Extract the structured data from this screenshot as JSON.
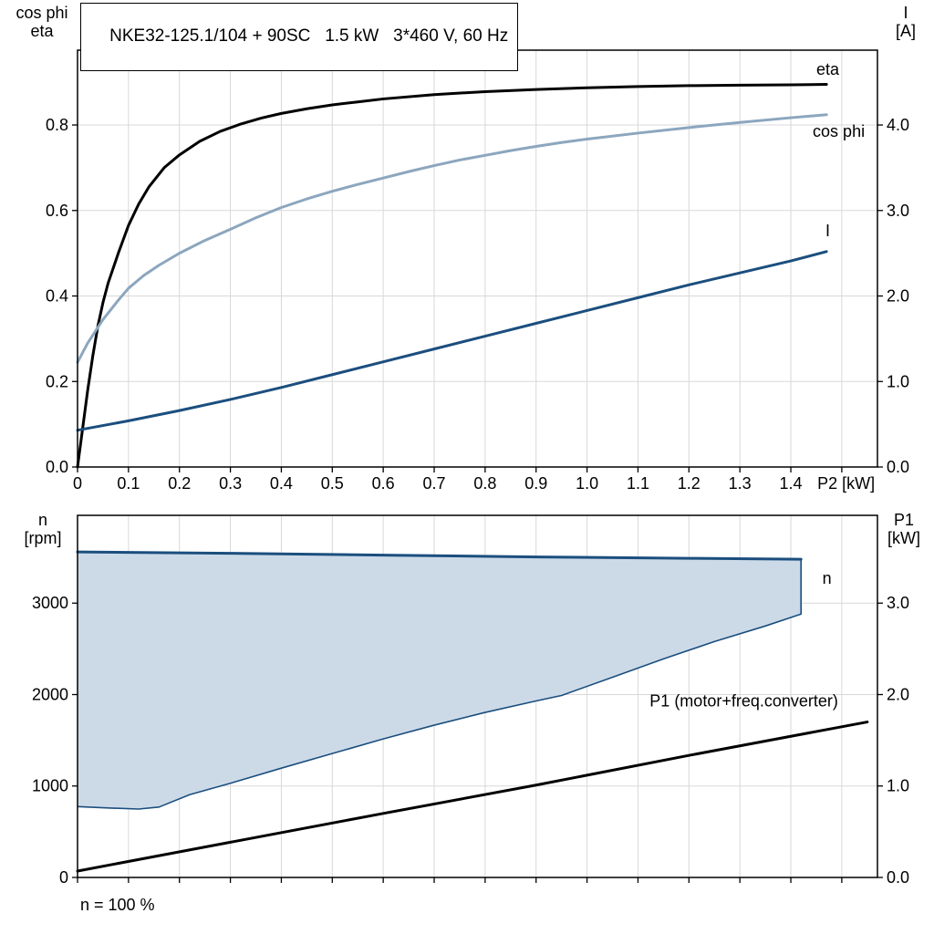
{
  "colors": {
    "grid": "#D8D8D8",
    "frame": "#000000",
    "eta": "#000000",
    "cos_phi": "#8CA6BE",
    "current": "#1B4E7E",
    "speed": "#1B4E7E",
    "band_fill": "#CCDAE8",
    "p1": "#000000"
  },
  "chart_data": [
    {
      "id": "chart-top",
      "type": "line",
      "title": "NKE32-125.1/104 + 90SC   1.5 kW   3*460 V, 60 Hz",
      "x_axis": {
        "min": 0,
        "max": 1.57,
        "tick_step": 0.1,
        "grid_step": 0.1,
        "grid_max": 1.5,
        "tick_labels": [
          "0",
          "0.1",
          "0.2",
          "0.3",
          "0.4",
          "0.5",
          "0.6",
          "0.7",
          "0.8",
          "0.9",
          "1.0",
          "1.1",
          "1.2",
          "1.3",
          "1.4"
        ],
        "end_label": "P2 [kW]",
        "end_label_x": 1.452
      },
      "y_left": {
        "title_lines": [
          "cos phi",
          "eta"
        ],
        "min": 0,
        "max": 0.975,
        "tick_values": [
          0,
          0.2,
          0.4,
          0.6,
          0.8
        ],
        "tick_labels": [
          "0.0",
          "0.2",
          "0.4",
          "0.6",
          "0.8"
        ]
      },
      "y_right": {
        "title_lines": [
          "I",
          "[A]"
        ],
        "min": 0,
        "max": 4.875,
        "tick_values": [
          0,
          1,
          2,
          3,
          4
        ],
        "tick_labels": [
          "0.0",
          "1.0",
          "2.0",
          "3.0",
          "4.0"
        ]
      },
      "series": [
        {
          "name": "eta",
          "axis": "left",
          "color": "#000000",
          "width": 3,
          "points": [
            [
              0,
              0
            ],
            [
              0.01,
              0.09
            ],
            [
              0.02,
              0.18
            ],
            [
              0.03,
              0.26
            ],
            [
              0.04,
              0.33
            ],
            [
              0.05,
              0.385
            ],
            [
              0.06,
              0.43
            ],
            [
              0.08,
              0.5
            ],
            [
              0.1,
              0.565
            ],
            [
              0.12,
              0.615
            ],
            [
              0.14,
              0.655
            ],
            [
              0.17,
              0.7
            ],
            [
              0.2,
              0.73
            ],
            [
              0.24,
              0.762
            ],
            [
              0.28,
              0.785
            ],
            [
              0.32,
              0.802
            ],
            [
              0.36,
              0.816
            ],
            [
              0.4,
              0.827
            ],
            [
              0.45,
              0.838
            ],
            [
              0.5,
              0.847
            ],
            [
              0.55,
              0.854
            ],
            [
              0.6,
              0.861
            ],
            [
              0.7,
              0.871
            ],
            [
              0.8,
              0.878
            ],
            [
              0.9,
              0.883
            ],
            [
              1.0,
              0.887
            ],
            [
              1.1,
              0.89
            ],
            [
              1.2,
              0.892
            ],
            [
              1.3,
              0.893
            ],
            [
              1.4,
              0.894
            ],
            [
              1.47,
              0.895
            ]
          ]
        },
        {
          "name": "cos-phi",
          "axis": "left",
          "color": "#8CA6BE",
          "width": 3,
          "points": [
            [
              0,
              0.245
            ],
            [
              0.02,
              0.29
            ],
            [
              0.05,
              0.345
            ],
            [
              0.08,
              0.39
            ],
            [
              0.1,
              0.418
            ],
            [
              0.13,
              0.448
            ],
            [
              0.16,
              0.472
            ],
            [
              0.2,
              0.5
            ],
            [
              0.25,
              0.53
            ],
            [
              0.3,
              0.556
            ],
            [
              0.35,
              0.583
            ],
            [
              0.4,
              0.607
            ],
            [
              0.45,
              0.627
            ],
            [
              0.5,
              0.645
            ],
            [
              0.55,
              0.661
            ],
            [
              0.6,
              0.676
            ],
            [
              0.65,
              0.691
            ],
            [
              0.7,
              0.705
            ],
            [
              0.75,
              0.718
            ],
            [
              0.8,
              0.729
            ],
            [
              0.85,
              0.74
            ],
            [
              0.9,
              0.75
            ],
            [
              0.95,
              0.759
            ],
            [
              1.0,
              0.767
            ],
            [
              1.1,
              0.781
            ],
            [
              1.2,
              0.794
            ],
            [
              1.3,
              0.806
            ],
            [
              1.4,
              0.817
            ],
            [
              1.47,
              0.824
            ]
          ]
        },
        {
          "name": "current",
          "axis": "right",
          "color": "#1B4E7E",
          "width": 3,
          "points": [
            [
              0,
              0.43
            ],
            [
              0.1,
              0.54
            ],
            [
              0.2,
              0.66
            ],
            [
              0.3,
              0.79
            ],
            [
              0.4,
              0.93
            ],
            [
              0.5,
              1.08
            ],
            [
              0.6,
              1.23
            ],
            [
              0.7,
              1.38
            ],
            [
              0.8,
              1.53
            ],
            [
              0.9,
              1.68
            ],
            [
              1.0,
              1.83
            ],
            [
              1.1,
              1.98
            ],
            [
              1.2,
              2.13
            ],
            [
              1.3,
              2.27
            ],
            [
              1.4,
              2.41
            ],
            [
              1.47,
              2.52
            ]
          ]
        }
      ],
      "labels": [
        {
          "id": "eta",
          "text": "eta",
          "x": 1.45,
          "y": 0.917,
          "axis": "left",
          "color": "#000000"
        },
        {
          "id": "cos-phi",
          "text": "cos phi",
          "x": 1.443,
          "y": 0.772,
          "axis": "left",
          "color": "#8CA6BE"
        },
        {
          "id": "current",
          "text": "I",
          "x": 1.468,
          "y": 2.7,
          "axis": "right",
          "color": "#1B4E7E"
        }
      ]
    },
    {
      "id": "chart-bottom",
      "type": "line",
      "note": "n = 100 %",
      "x_axis": {
        "min": 0,
        "max": 1.57,
        "tick_step": 0.1,
        "grid_step": 0.1,
        "grid_max": 1.5,
        "tick_labels": []
      },
      "y_left": {
        "title_lines": [
          "n",
          "[rpm]"
        ],
        "min": 0,
        "max": 3960,
        "tick_values": [
          0,
          1000,
          2000,
          3000
        ],
        "tick_labels": [
          "0",
          "1000",
          "2000",
          "3000"
        ]
      },
      "y_right": {
        "title_lines": [
          "P1",
          "[kW]"
        ],
        "min": 0,
        "max": 3.96,
        "tick_values": [
          0,
          1,
          2,
          3
        ],
        "tick_labels": [
          "0.0",
          "1.0",
          "2.0",
          "3.0"
        ]
      },
      "band": {
        "fill": "#CCDAE8",
        "stroke": "#1B4E7E",
        "upper": [
          [
            0,
            3560
          ],
          [
            0.3,
            3545
          ],
          [
            0.6,
            3525
          ],
          [
            0.9,
            3505
          ],
          [
            1.2,
            3490
          ],
          [
            1.42,
            3480
          ]
        ],
        "lower": [
          [
            0,
            775
          ],
          [
            0.06,
            760
          ],
          [
            0.12,
            748
          ],
          [
            0.16,
            770
          ],
          [
            0.22,
            905
          ],
          [
            0.3,
            1030
          ],
          [
            0.4,
            1195
          ],
          [
            0.5,
            1355
          ],
          [
            0.6,
            1515
          ],
          [
            0.7,
            1665
          ],
          [
            0.8,
            1805
          ],
          [
            0.9,
            1930
          ],
          [
            0.95,
            1990
          ],
          [
            1.05,
            2190
          ],
          [
            1.15,
            2390
          ],
          [
            1.25,
            2580
          ],
          [
            1.35,
            2750
          ],
          [
            1.42,
            2880
          ]
        ]
      },
      "series": [
        {
          "name": "speed",
          "axis": "left",
          "color": "#1B4E7E",
          "width": 3,
          "points": [
            [
              0,
              3560
            ],
            [
              0.3,
              3545
            ],
            [
              0.6,
              3525
            ],
            [
              0.9,
              3505
            ],
            [
              1.2,
              3490
            ],
            [
              1.42,
              3480
            ]
          ]
        },
        {
          "name": "p1",
          "axis": "right",
          "color": "#000000",
          "width": 3,
          "points": [
            [
              0,
              0.07
            ],
            [
              0.3,
              0.385
            ],
            [
              0.6,
              0.7
            ],
            [
              0.9,
              1.01
            ],
            [
              1.2,
              1.335
            ],
            [
              1.55,
              1.7
            ]
          ]
        }
      ],
      "labels": [
        {
          "id": "speed",
          "text": "n",
          "x": 1.462,
          "y": 3210,
          "axis": "left",
          "color": "#1B4E7E"
        },
        {
          "id": "p1",
          "text": "P1 (motor+freq.converter)",
          "x": 1.123,
          "y": 1.87,
          "axis": "right",
          "color": "#000000"
        }
      ]
    }
  ]
}
